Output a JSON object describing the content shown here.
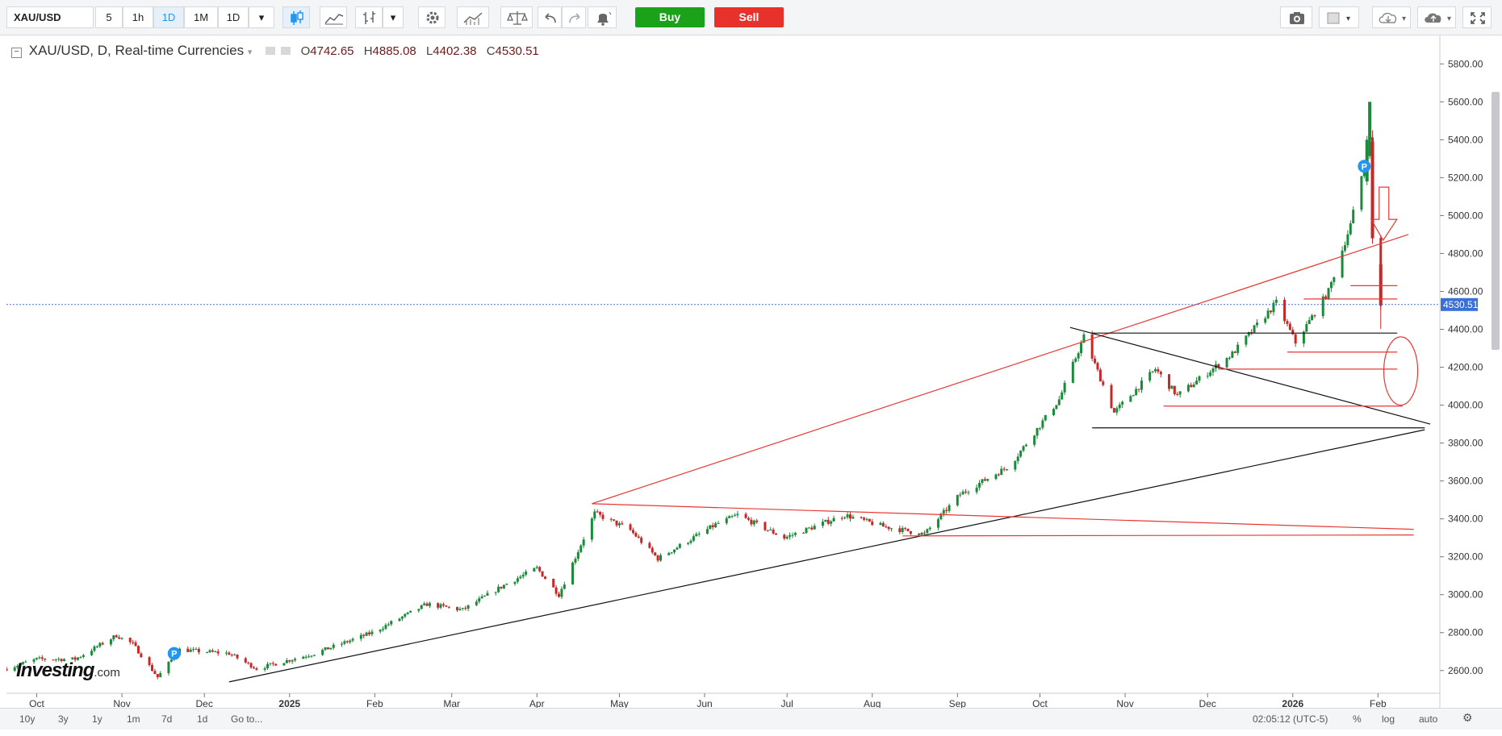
{
  "toolbar": {
    "symbol": "XAU/USD",
    "intervals": [
      "5",
      "1h",
      "1D",
      "1M",
      "1D"
    ],
    "active_interval_index": 2,
    "buy_label": "Buy",
    "sell_label": "Sell",
    "buy_color": "#1aa21a",
    "sell_color": "#e6322b"
  },
  "legend": {
    "title": "XAU/USD, D, Real-time Currencies",
    "open_key": "O",
    "open": "4742.65",
    "high_key": "H",
    "high": "4885.08",
    "low_key": "L",
    "low": "4402.38",
    "close_key": "C",
    "close": "4530.51"
  },
  "logo": {
    "brand": "Investing",
    "suffix": ".com"
  },
  "bottom": {
    "ranges": [
      "10y",
      "3y",
      "1y",
      "1m",
      "7d",
      "1d"
    ],
    "goto": "Go to...",
    "clock": "02:05:12 (UTC-5)",
    "percent": "%",
    "log": "log",
    "auto": "auto"
  },
  "chart_data": {
    "type": "candlestick",
    "symbol": "XAU/USD",
    "timeframe": "D",
    "x_tick_labels": [
      "Oct",
      "Nov",
      "Dec",
      "2025",
      "Feb",
      "Mar",
      "Apr",
      "May",
      "Jun",
      "Jul",
      "Aug",
      "Sep",
      "Oct",
      "Nov",
      "Dec",
      "2026",
      "Feb"
    ],
    "y_ticks": [
      2600,
      2800,
      3000,
      3200,
      3400,
      3600,
      3800,
      4000,
      4200,
      4400,
      4600,
      4800,
      5000,
      5200,
      5400,
      5600,
      5800
    ],
    "y_tick_labels": [
      "2600.00",
      "2800.00",
      "3000.00",
      "3200.00",
      "3400.00",
      "3600.00",
      "3800.00",
      "4000.00",
      "4200.00",
      "4400.00",
      "4600.00",
      "4800.00",
      "5000.00",
      "5200.00",
      "5400.00",
      "5600.00",
      "5800.00"
    ],
    "ylim": [
      2480,
      5950
    ],
    "last_price": 4530.51,
    "last_price_label": "4530.51",
    "up_color": "#1b8a3a",
    "down_color": "#c62828",
    "closes_approx": [
      [
        "2024-09-20",
        2610
      ],
      [
        "2024-10-01",
        2660
      ],
      [
        "2024-10-15",
        2660
      ],
      [
        "2024-10-30",
        2785
      ],
      [
        "2024-11-05",
        2740
      ],
      [
        "2024-11-14",
        2565
      ],
      [
        "2024-11-22",
        2710
      ],
      [
        "2024-12-10",
        2690
      ],
      [
        "2024-12-20",
        2610
      ],
      [
        "2025-01-10",
        2690
      ],
      [
        "2025-01-31",
        2800
      ],
      [
        "2025-02-20",
        2950
      ],
      [
        "2025-03-05",
        2920
      ],
      [
        "2025-03-20",
        3050
      ],
      [
        "2025-04-01",
        3140
      ],
      [
        "2025-04-09",
        3000
      ],
      [
        "2025-04-22",
        3430
      ],
      [
        "2025-05-05",
        3340
      ],
      [
        "2025-05-15",
        3190
      ],
      [
        "2025-06-05",
        3370
      ],
      [
        "2025-06-13",
        3420
      ],
      [
        "2025-06-30",
        3300
      ],
      [
        "2025-07-22",
        3420
      ],
      [
        "2025-08-05",
        3360
      ],
      [
        "2025-08-20",
        3320
      ],
      [
        "2025-09-02",
        3530
      ],
      [
        "2025-09-20",
        3680
      ],
      [
        "2025-10-08",
        4030
      ],
      [
        "2025-10-17",
        4360
      ],
      [
        "2025-10-28",
        3960
      ],
      [
        "2025-11-12",
        4190
      ],
      [
        "2025-11-20",
        4050
      ],
      [
        "2025-12-10",
        4270
      ],
      [
        "2025-12-26",
        4540
      ],
      [
        "2026-01-02",
        4330
      ],
      [
        "2026-01-14",
        4600
      ],
      [
        "2026-01-22",
        4950
      ],
      [
        "2026-01-29",
        5400
      ],
      [
        "2026-01-30",
        4880
      ],
      [
        "2026-02-02",
        4530
      ]
    ],
    "annotations": [
      {
        "kind": "marker",
        "label": "P",
        "date": "2024-11-20",
        "price": 2690
      },
      {
        "kind": "marker",
        "label": "P",
        "date": "2026-01-27",
        "price": 5260
      }
    ]
  }
}
